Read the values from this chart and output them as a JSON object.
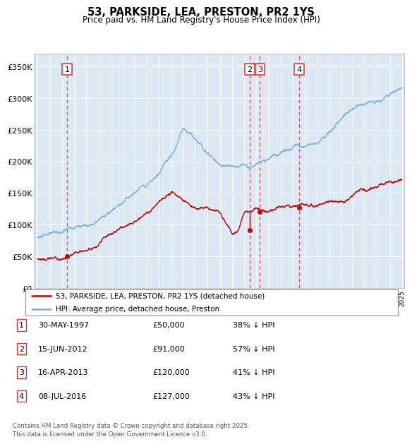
{
  "title": "53, PARKSIDE, LEA, PRESTON, PR2 1YS",
  "subtitle": "Price paid vs. HM Land Registry's House Price Index (HPI)",
  "fig_bg_color": "#ffffff",
  "plot_bg_color": "#dce9f5",
  "hpi_color": "#7bafd4",
  "price_color": "#cc0000",
  "dashed_color": "#dd3333",
  "ylim": [
    0,
    370000
  ],
  "yticks": [
    0,
    50000,
    100000,
    150000,
    200000,
    250000,
    300000,
    350000
  ],
  "ytick_labels": [
    "£0",
    "£50K",
    "£100K",
    "£150K",
    "£200K",
    "£250K",
    "£300K",
    "£350K"
  ],
  "xstart": 1995,
  "xend": 2025,
  "sale_dates": [
    1997.41,
    2012.46,
    2013.29,
    2016.52
  ],
  "sale_prices": [
    50000,
    91000,
    120000,
    127000
  ],
  "sale_labels": [
    "1",
    "2",
    "3",
    "4"
  ],
  "legend_entries": [
    {
      "label": "53, PARKSIDE, LEA, PRESTON, PR2 1YS (detached house)",
      "color": "#cc0000"
    },
    {
      "label": "HPI: Average price, detached house, Preston",
      "color": "#7bafd4"
    }
  ],
  "table": [
    {
      "num": "1",
      "date": "30-MAY-1997",
      "price": "£50,000",
      "note": "38% ↓ HPI"
    },
    {
      "num": "2",
      "date": "15-JUN-2012",
      "price": "£91,000",
      "note": "57% ↓ HPI"
    },
    {
      "num": "3",
      "date": "16-APR-2013",
      "price": "£120,000",
      "note": "41% ↓ HPI"
    },
    {
      "num": "4",
      "date": "08-JUL-2016",
      "price": "£127,000",
      "note": "43% ↓ HPI"
    }
  ],
  "footnote": "Contains HM Land Registry data © Crown copyright and database right 2025.\nThis data is licensed under the Open Government Licence v3.0."
}
